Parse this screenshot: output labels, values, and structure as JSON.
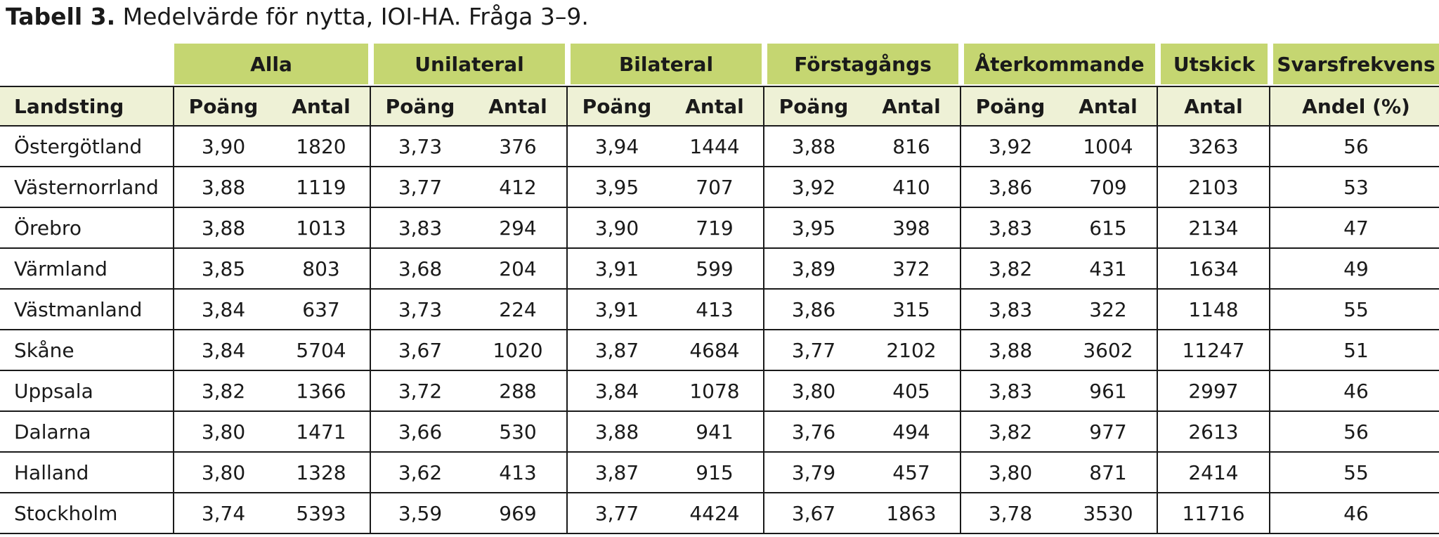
{
  "title": {
    "bold": "Tabell 3.",
    "rest": " Medelvärde för nytta, IOI-HA. Fråga 3–9."
  },
  "groups": [
    "Alla",
    "Unilateral",
    "Bilateral",
    "Förstagångs",
    "Återkommande",
    "Utskick",
    "Svarsfrekvens"
  ],
  "subheaders": [
    "Landsting",
    "Poäng",
    "Antal",
    "Poäng",
    "Antal",
    "Poäng",
    "Antal",
    "Poäng",
    "Antal",
    "Poäng",
    "Antal",
    "Antal",
    "Andel (%)"
  ],
  "rows": [
    [
      "Östergötland",
      "3,90",
      "1820",
      "3,73",
      "376",
      "3,94",
      "1444",
      "3,88",
      "816",
      "3,92",
      "1004",
      "3263",
      "56"
    ],
    [
      "Västernorrland",
      "3,88",
      "1119",
      "3,77",
      "412",
      "3,95",
      "707",
      "3,92",
      "410",
      "3,86",
      "709",
      "2103",
      "53"
    ],
    [
      "Örebro",
      "3,88",
      "1013",
      "3,83",
      "294",
      "3,90",
      "719",
      "3,95",
      "398",
      "3,83",
      "615",
      "2134",
      "47"
    ],
    [
      "Värmland",
      "3,85",
      "803",
      "3,68",
      "204",
      "3,91",
      "599",
      "3,89",
      "372",
      "3,82",
      "431",
      "1634",
      "49"
    ],
    [
      "Västmanland",
      "3,84",
      "637",
      "3,73",
      "224",
      "3,91",
      "413",
      "3,86",
      "315",
      "3,83",
      "322",
      "1148",
      "55"
    ],
    [
      "Skåne",
      "3,84",
      "5704",
      "3,67",
      "1020",
      "3,87",
      "4684",
      "3,77",
      "2102",
      "3,88",
      "3602",
      "11247",
      "51"
    ],
    [
      "Uppsala",
      "3,82",
      "1366",
      "3,72",
      "288",
      "3,84",
      "1078",
      "3,80",
      "405",
      "3,83",
      "961",
      "2997",
      "46"
    ],
    [
      "Dalarna",
      "3,80",
      "1471",
      "3,66",
      "530",
      "3,88",
      "941",
      "3,76",
      "494",
      "3,82",
      "977",
      "2613",
      "56"
    ],
    [
      "Halland",
      "3,80",
      "1328",
      "3,62",
      "413",
      "3,87",
      "915",
      "3,79",
      "457",
      "3,80",
      "871",
      "2414",
      "55"
    ],
    [
      "Stockholm",
      "3,74",
      "5393",
      "3,59",
      "969",
      "3,77",
      "4424",
      "3,67",
      "1863",
      "3,78",
      "3530",
      "11716",
      "46"
    ]
  ]
}
